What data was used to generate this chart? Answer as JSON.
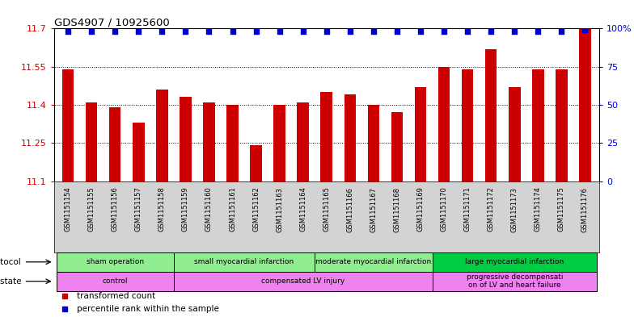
{
  "title": "GDS4907 / 10925600",
  "samples": [
    "GSM1151154",
    "GSM1151155",
    "GSM1151156",
    "GSM1151157",
    "GSM1151158",
    "GSM1151159",
    "GSM1151160",
    "GSM1151161",
    "GSM1151162",
    "GSM1151163",
    "GSM1151164",
    "GSM1151165",
    "GSM1151166",
    "GSM1151167",
    "GSM1151168",
    "GSM1151169",
    "GSM1151170",
    "GSM1151171",
    "GSM1151172",
    "GSM1151173",
    "GSM1151174",
    "GSM1151175",
    "GSM1151176"
  ],
  "bar_values": [
    11.54,
    11.41,
    11.39,
    11.33,
    11.46,
    11.43,
    11.41,
    11.4,
    11.24,
    11.4,
    11.41,
    11.45,
    11.44,
    11.4,
    11.37,
    11.47,
    11.55,
    11.54,
    11.62,
    11.47,
    11.54,
    11.54,
    11.7
  ],
  "percentile_values": [
    98,
    98,
    98,
    98,
    98,
    98,
    98,
    98,
    98,
    98,
    98,
    98,
    98,
    98,
    98,
    98,
    98,
    98,
    98,
    98,
    98,
    98,
    99
  ],
  "bar_color": "#cc0000",
  "percentile_color": "#0000cc",
  "ylim_left": [
    11.1,
    11.7
  ],
  "ylim_right": [
    0,
    100
  ],
  "yticks_left": [
    11.1,
    11.25,
    11.4,
    11.55,
    11.7
  ],
  "yticks_right": [
    0,
    25,
    50,
    75,
    100
  ],
  "ytick_labels_left": [
    "11.1",
    "11.25",
    "11.4",
    "11.55",
    "11.7"
  ],
  "ytick_labels_right": [
    "0",
    "25",
    "50",
    "75",
    "100%"
  ],
  "protocol_groups": [
    {
      "label": "sham operation",
      "start": 0,
      "end": 4,
      "color": "#90ee90"
    },
    {
      "label": "small myocardial infarction",
      "start": 5,
      "end": 10,
      "color": "#90ee90"
    },
    {
      "label": "moderate myocardial infarction",
      "start": 11,
      "end": 15,
      "color": "#90ee90"
    },
    {
      "label": "large myocardial infarction",
      "start": 16,
      "end": 22,
      "color": "#00cc44"
    }
  ],
  "disease_groups": [
    {
      "label": "control",
      "start": 0,
      "end": 4,
      "color": "#ee82ee"
    },
    {
      "label": "compensated LV injury",
      "start": 5,
      "end": 15,
      "color": "#ee82ee"
    },
    {
      "label": "progressive decompensati\non of LV and heart failure",
      "start": 16,
      "end": 22,
      "color": "#ee82ee"
    }
  ],
  "legend_items": [
    {
      "label": "transformed count",
      "color": "#cc0000"
    },
    {
      "label": "percentile rank within the sample",
      "color": "#0000cc"
    }
  ],
  "background_color": "#ffffff",
  "tick_color_left": "#cc0000",
  "tick_color_right": "#0000cc",
  "xticklabel_bg": "#d3d3d3"
}
